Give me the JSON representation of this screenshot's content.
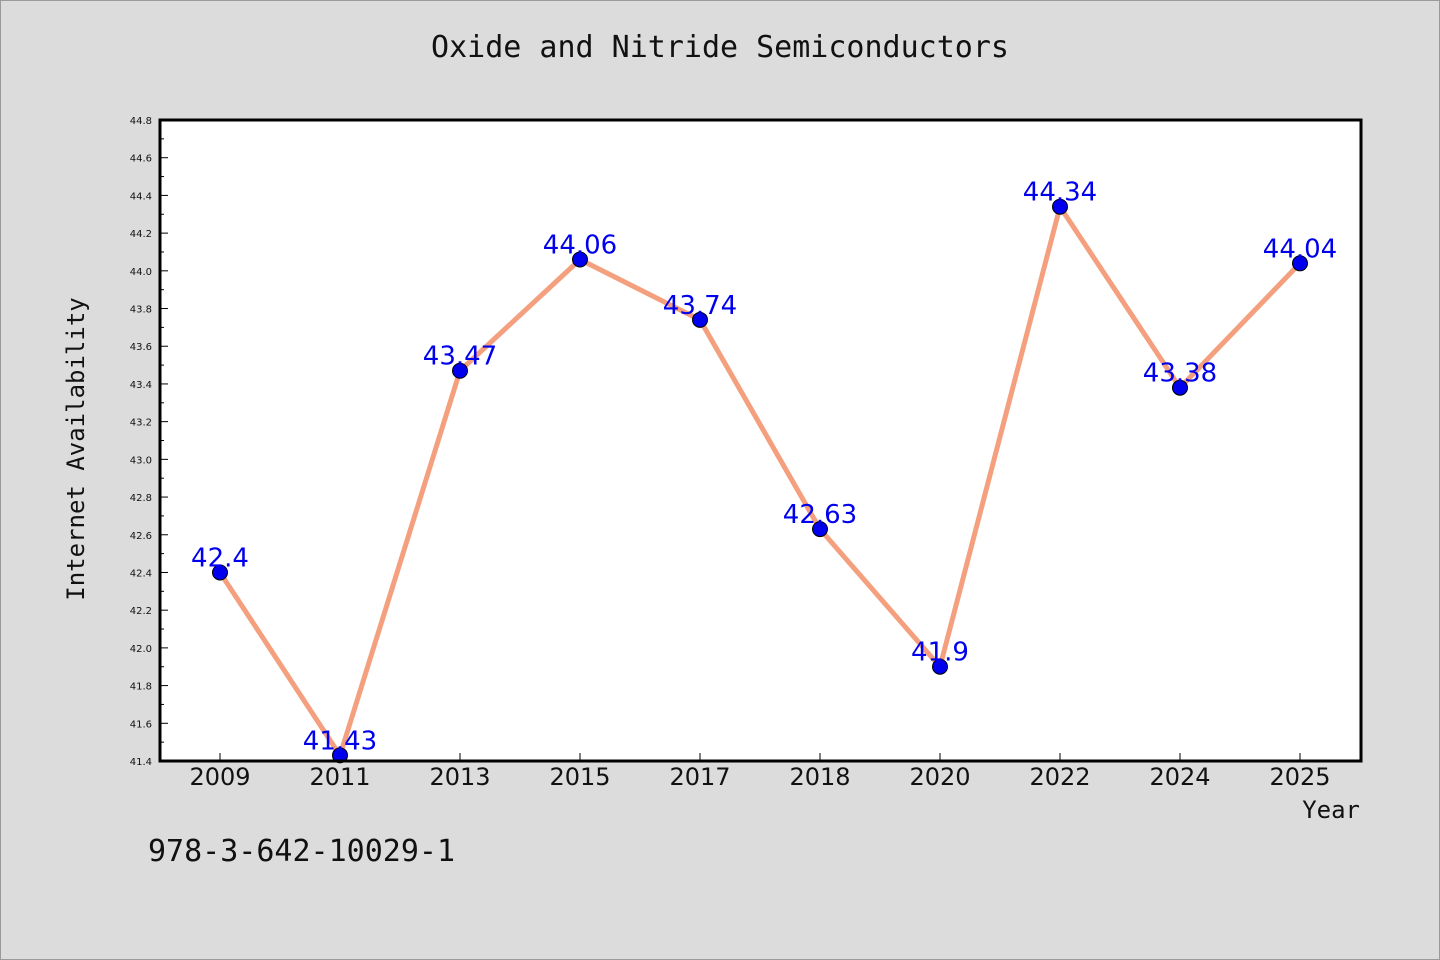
{
  "chart_data": {
    "type": "line",
    "title": "Oxide and Nitride Semiconductors",
    "xlabel": "Year",
    "ylabel": "Internet Availability",
    "categories": [
      "2009",
      "2011",
      "2013",
      "2015",
      "2017",
      "2018",
      "2020",
      "2022",
      "2024",
      "2025"
    ],
    "series": [
      {
        "values": [
          42.4,
          41.43,
          43.47,
          44.06,
          43.74,
          42.63,
          41.9,
          44.34,
          43.38,
          44.04
        ],
        "labels": [
          "42.4",
          "41.43",
          "43.47",
          "44.06",
          "43.74",
          "42.63",
          "41.9",
          "44.34",
          "43.38",
          "44.04"
        ]
      }
    ],
    "ylim": [
      41.4,
      44.8
    ],
    "yticks": [
      "41.4",
      "41.6",
      "41.8",
      "42.0",
      "42.2",
      "42.4",
      "42.6",
      "42.8",
      "43.0",
      "43.2",
      "43.4",
      "43.6",
      "43.8",
      "44.0",
      "44.2",
      "44.4",
      "44.6",
      "44.8"
    ],
    "grid": false,
    "legend": "none",
    "colors": {
      "line": "#f4a07e",
      "marker": "#0000ee",
      "label": "#0000ee",
      "axes": "#000000",
      "plot_background": "#ffffff",
      "figure_background": "#dcdcdc"
    }
  },
  "footnote": "978-3-642-10029-1"
}
